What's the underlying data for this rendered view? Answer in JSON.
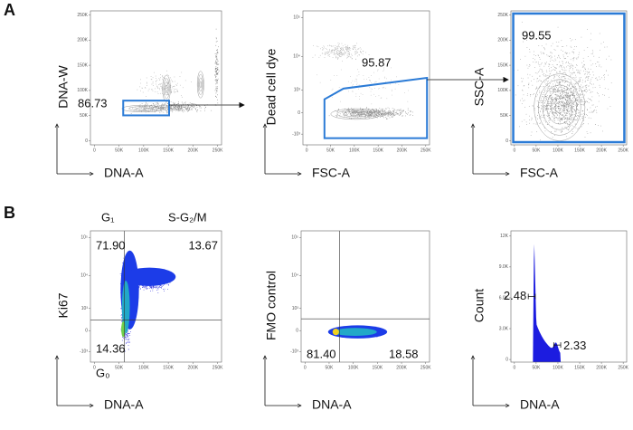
{
  "panel_labels": [
    "A",
    "B"
  ],
  "panels": [
    {
      "y_label": "DNA-W",
      "x_label": "DNA-A",
      "x_ticks": [
        "0",
        "50K",
        "100K",
        "150K",
        "200K",
        "250K"
      ],
      "y_ticks": [
        "0",
        "50K",
        "100K",
        "150K",
        "200K",
        "250K"
      ],
      "gates": [
        "86.73"
      ]
    },
    {
      "y_label": "Dead cell dye",
      "x_label": "FSC-A",
      "x_ticks": [
        "0",
        "50K",
        "100K",
        "150K",
        "200K",
        "250K"
      ],
      "y_ticks": [
        "-10³",
        "0",
        "10³",
        "10⁴",
        "10⁵"
      ],
      "gates": [
        "95.87"
      ]
    },
    {
      "y_label": "SSC-A",
      "x_label": "FSC-A",
      "x_ticks": [
        "0",
        "50K",
        "100K",
        "150K",
        "200K",
        "250K"
      ],
      "y_ticks": [
        "0",
        "50K",
        "100K",
        "150K",
        "200K",
        "250K"
      ],
      "gates": [
        "99.55"
      ]
    },
    {
      "y_label": "Ki67",
      "x_label": "DNA-A",
      "x_ticks": [
        "0",
        "50K",
        "100K",
        "150K",
        "200K",
        "250K"
      ],
      "y_ticks": [
        "-10³",
        "0",
        "10³",
        "10⁴",
        "10⁵"
      ],
      "gates": [
        "71.90",
        "13.67",
        "14.36"
      ],
      "quadrant_labels": [
        "G₁",
        "S-G₂/M",
        "G₀"
      ]
    },
    {
      "y_label": "FMO control",
      "x_label": "DNA-A",
      "x_ticks": [
        "0",
        "50K",
        "100K",
        "150K",
        "200K",
        "250K"
      ],
      "y_ticks": [
        "-10³",
        "0",
        "10³",
        "10⁴",
        "10⁵"
      ],
      "gates": [
        "81.40",
        "18.58"
      ]
    },
    {
      "y_label": "Count",
      "x_label": "DNA-A",
      "x_ticks": [
        "0",
        "50K",
        "100K",
        "150K",
        "200K",
        "250K"
      ],
      "y_ticks": [
        "0",
        "3.0K",
        "6.0K",
        "9.0K",
        "12K"
      ],
      "gates": [
        "2.48",
        "2.33"
      ]
    }
  ]
}
